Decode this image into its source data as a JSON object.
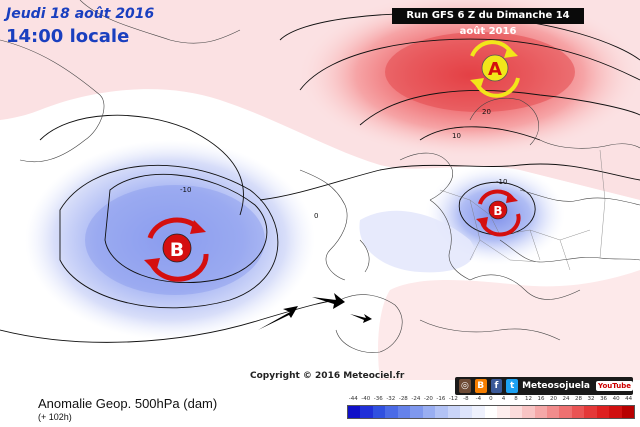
{
  "header": {
    "date": "Jeudi 18 août 2016",
    "time": "14:00 locale",
    "run": "Run GFS 6 Z du Dimanche 14 août 2016"
  },
  "map": {
    "high_letter": "A",
    "low_letter": "B",
    "contour_labels": [
      "-10",
      "0",
      "10",
      "20"
    ],
    "colors": {
      "high": "#e03030",
      "low": "#4a5ee8",
      "arrow_yellow": "#f2e61a",
      "arrow_red": "#d40f0f"
    }
  },
  "copyright": "Copyright © 2016 Meteociel.fr",
  "legend": {
    "title": "Anomalie Geop. 500hPa (dam)",
    "forecast_hour": "(+ 102h)",
    "ticks": [
      "-44",
      "-40",
      "-36",
      "-32",
      "-28",
      "-24",
      "-20",
      "-16",
      "-12",
      "-8",
      "-4",
      "0",
      "4",
      "8",
      "12",
      "16",
      "20",
      "24",
      "28",
      "32",
      "36",
      "40",
      "44"
    ],
    "colors": [
      "#1010c8",
      "#2030d8",
      "#3050e0",
      "#4a6ae6",
      "#6582ea",
      "#7f98ee",
      "#99aef2",
      "#b2c2f5",
      "#c9d4f8",
      "#dde4fb",
      "#eef1fd",
      "#ffffff",
      "#fdeeee",
      "#fbdcdc",
      "#f8c4c4",
      "#f5a8a8",
      "#f28c8c",
      "#ee7070",
      "#ea5454",
      "#e43838",
      "#de2020",
      "#d01010",
      "#b80000"
    ]
  },
  "social": {
    "brand": "Meteosojuela",
    "icons": [
      "instagram-icon",
      "blogger-icon",
      "facebook-icon",
      "twitter-icon"
    ],
    "youtube": "YouTube"
  }
}
